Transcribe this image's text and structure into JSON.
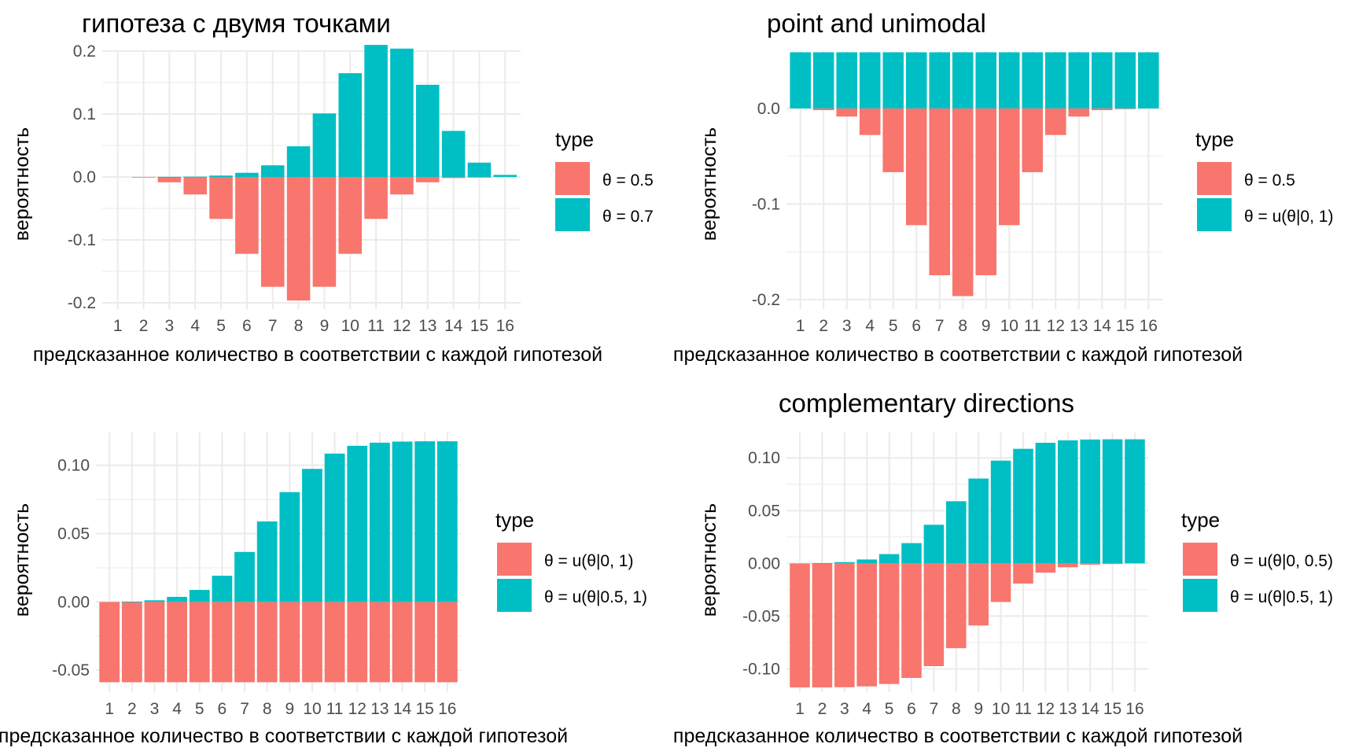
{
  "colors": {
    "red": "#F8766D",
    "teal": "#00BFC4",
    "grid": "#ebebeb"
  },
  "chart_data": [
    {
      "type": "bar",
      "title": "гипотеза с двумя точками",
      "xlabel": "предсказанное количество в соответствии с каждой гипотезой",
      "ylabel": "вероятность",
      "categories": [
        "1",
        "2",
        "3",
        "4",
        "5",
        "6",
        "7",
        "8",
        "9",
        "10",
        "11",
        "12",
        "13",
        "14",
        "15",
        "16"
      ],
      "ylim": [
        -0.21,
        0.2
      ],
      "yticks": [
        {
          "v": -0.2,
          "label": "-0.2"
        },
        {
          "v": -0.1,
          "label": "-0.1"
        },
        {
          "v": 0.0,
          "label": "0.0"
        },
        {
          "v": 0.1,
          "label": "0.1"
        },
        {
          "v": 0.2,
          "label": "0.2"
        }
      ],
      "legend": {
        "title": "type",
        "position": "right"
      },
      "series": [
        {
          "name": "θ = 0.5",
          "color": "#F8766D",
          "values": [
            0,
            -0.0002,
            -0.0085,
            -0.0278,
            -0.0667,
            -0.1222,
            -0.1746,
            -0.1964,
            -0.1746,
            -0.1222,
            -0.0667,
            -0.0278,
            -0.0085,
            -0.0018,
            -0.0002,
            0
          ]
        },
        {
          "name": "θ = 0.7",
          "color": "#00BFC4",
          "values": [
            0,
            0,
            0.0002,
            0.0005,
            0.0022,
            0.0066,
            0.0185,
            0.0487,
            0.101,
            0.1649,
            0.2099,
            0.204,
            0.1465,
            0.0732,
            0.0228,
            0.0033
          ]
        }
      ]
    },
    {
      "type": "bar",
      "title": "point and unimodal",
      "xlabel": "предсказанное количество в соответствии с каждой гипотезой",
      "ylabel": "вероятность",
      "categories": [
        "1",
        "2",
        "3",
        "4",
        "5",
        "6",
        "7",
        "8",
        "9",
        "10",
        "11",
        "12",
        "13",
        "14",
        "15",
        "16"
      ],
      "ylim": [
        -0.21,
        0.06
      ],
      "yticks": [
        {
          "v": -0.2,
          "label": "-0.2"
        },
        {
          "v": -0.1,
          "label": "-0.1"
        },
        {
          "v": 0.0,
          "label": "0.0"
        }
      ],
      "legend": {
        "title": "type",
        "position": "right"
      },
      "series": [
        {
          "name": "θ = 0.5",
          "color": "#F8766D",
          "values": [
            0,
            -0.0018,
            -0.0085,
            -0.0278,
            -0.0667,
            -0.1222,
            -0.1746,
            -0.1964,
            -0.1746,
            -0.1222,
            -0.0667,
            -0.0278,
            -0.0085,
            -0.0018,
            -0.0002,
            0
          ]
        },
        {
          "name": "θ = u(θ|0, 1)",
          "color": "#00BFC4",
          "values": [
            0.0588,
            0.0588,
            0.0588,
            0.0588,
            0.0588,
            0.0588,
            0.0588,
            0.0588,
            0.0588,
            0.0588,
            0.0588,
            0.0588,
            0.0588,
            0.0588,
            0.0588,
            0.0588
          ]
        }
      ]
    },
    {
      "type": "bar",
      "title": "",
      "xlabel": "предсказанное количество в соответствии с каждой гипотезой",
      "ylabel": "вероятность",
      "categories": [
        "1",
        "2",
        "3",
        "4",
        "5",
        "6",
        "7",
        "8",
        "9",
        "10",
        "11",
        "12",
        "13",
        "14",
        "15",
        "16"
      ],
      "ylim": [
        -0.066,
        0.124
      ],
      "yticks": [
        {
          "v": -0.05,
          "label": "-0.05"
        },
        {
          "v": 0.0,
          "label": "0.00"
        },
        {
          "v": 0.05,
          "label": "0.05"
        },
        {
          "v": 0.1,
          "label": "0.10"
        }
      ],
      "legend": {
        "title": "type",
        "position": "right"
      },
      "series": [
        {
          "name": "θ = u(θ|0, 1)",
          "color": "#F8766D",
          "values": [
            -0.0588,
            -0.0588,
            -0.0588,
            -0.0588,
            -0.0588,
            -0.0588,
            -0.0588,
            -0.0588,
            -0.0588,
            -0.0588,
            -0.0588,
            -0.0588,
            -0.0588,
            -0.0588,
            -0.0588,
            -0.0588
          ]
        },
        {
          "name": "θ = u(θ|0.5, 1)",
          "color": "#00BFC4",
          "values": [
            0,
            0.0002,
            0.0012,
            0.0037,
            0.0088,
            0.0192,
            0.0366,
            0.0589,
            0.0804,
            0.0974,
            0.1086,
            0.1143,
            0.1166,
            0.1174,
            0.1176,
            0.1176
          ]
        }
      ]
    },
    {
      "type": "bar",
      "title": "complementary directions",
      "xlabel": "предсказанное количество в соответствии с каждой гипотезой",
      "ylabel": "вероятность",
      "categories": [
        "1",
        "2",
        "3",
        "4",
        "5",
        "6",
        "7",
        "8",
        "9",
        "10",
        "11",
        "12",
        "13",
        "14",
        "15",
        "16"
      ],
      "ylim": [
        -0.122,
        0.124
      ],
      "yticks": [
        {
          "v": -0.1,
          "label": "-0.10"
        },
        {
          "v": -0.05,
          "label": "-0.05"
        },
        {
          "v": 0.0,
          "label": "0.00"
        },
        {
          "v": 0.05,
          "label": "0.05"
        },
        {
          "v": 0.1,
          "label": "0.10"
        }
      ],
      "legend": {
        "title": "type",
        "position": "right"
      },
      "series": [
        {
          "name": "θ = u(θ|0, 0.5)",
          "color": "#F8766D",
          "values": [
            -0.1176,
            -0.1176,
            -0.1174,
            -0.1166,
            -0.1143,
            -0.1086,
            -0.0974,
            -0.0804,
            -0.0589,
            -0.0366,
            -0.0192,
            -0.0088,
            -0.0037,
            -0.0012,
            -0.0002,
            0
          ]
        },
        {
          "name": "θ = u(θ|0.5, 1)",
          "color": "#00BFC4",
          "values": [
            0,
            0.0002,
            0.0012,
            0.0037,
            0.0088,
            0.0192,
            0.0366,
            0.0589,
            0.0804,
            0.0974,
            0.1086,
            0.1143,
            0.1166,
            0.1174,
            0.1176,
            0.1176
          ]
        }
      ]
    }
  ]
}
